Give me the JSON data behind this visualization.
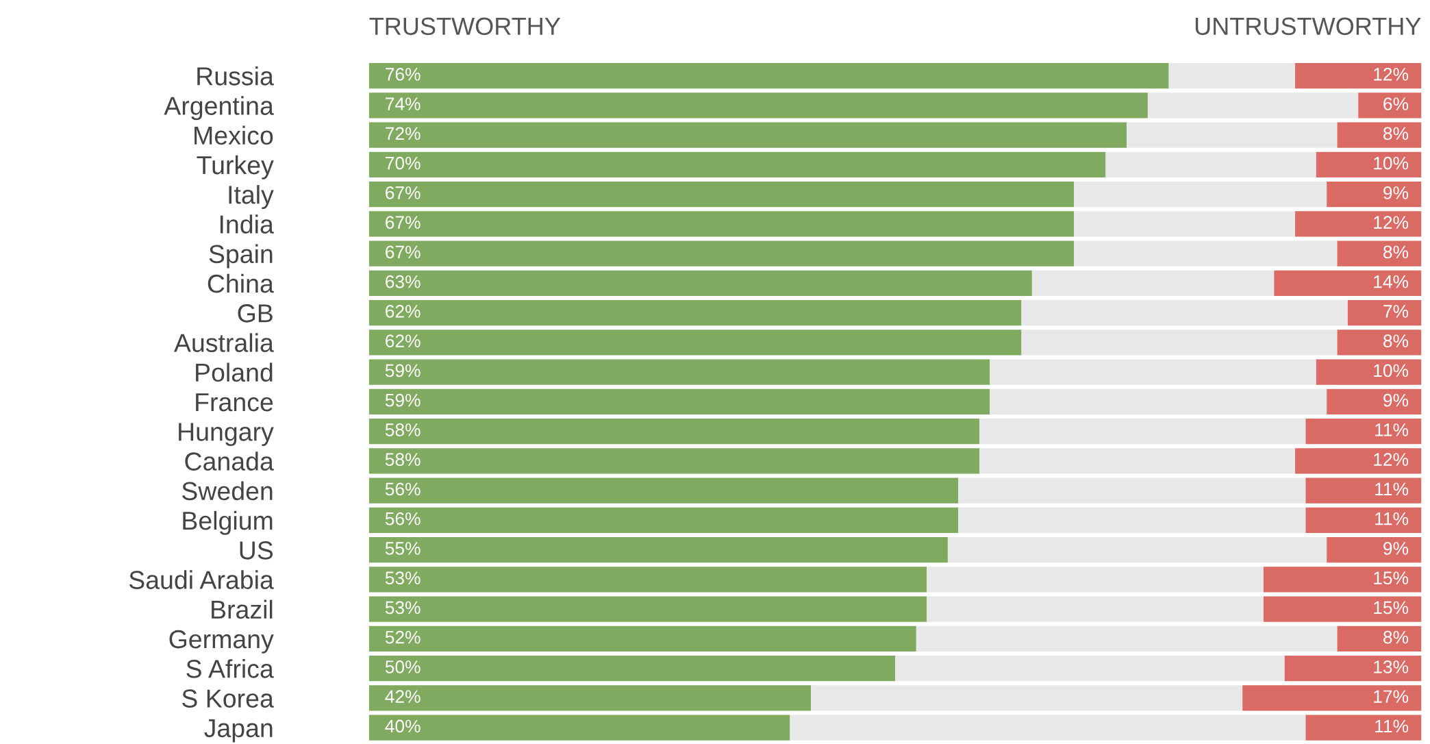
{
  "chart_data": {
    "type": "bar",
    "orientation": "horizontal",
    "stacked": true,
    "tick_labels": "y",
    "categories": [
      "Russia",
      "Argentina",
      "Mexico",
      "Turkey",
      "Italy",
      "India",
      "Spain",
      "China",
      "GB",
      "Australia",
      "Poland",
      "France",
      "Hungary",
      "Canada",
      "Sweden",
      "Belgium",
      "US",
      "Saudi Arabia",
      "Brazil",
      "Germany",
      "S Africa",
      "S Korea",
      "Japan"
    ],
    "xlim": [
      0,
      100
    ],
    "series": [
      {
        "name": "TRUSTWORTHY",
        "color": "#80aa60",
        "values": [
          76,
          74,
          72,
          70,
          67,
          67,
          67,
          63,
          62,
          62,
          59,
          59,
          58,
          58,
          56,
          56,
          55,
          53,
          53,
          52,
          50,
          42,
          40
        ],
        "value_labels": [
          "76%",
          "74%",
          "72%",
          "70%",
          "67%",
          "67%",
          "67%",
          "63%",
          "62%",
          "62%",
          "59%",
          "59%",
          "58%",
          "58%",
          "56%",
          "56%",
          "55%",
          "53%",
          "53%",
          "52%",
          "50%",
          "42%",
          "40%"
        ]
      },
      {
        "color": "#e8e8e8",
        "values": [
          12,
          20,
          20,
          20,
          24,
          21,
          25,
          23,
          31,
          30,
          31,
          32,
          31,
          30,
          33,
          33,
          36,
          32,
          32,
          40,
          37,
          41,
          49
        ]
      },
      {
        "name": "UNTRUSTWORTHY",
        "color": "#d96a64",
        "values": [
          12,
          6,
          8,
          10,
          9,
          12,
          8,
          14,
          7,
          8,
          10,
          9,
          11,
          12,
          11,
          11,
          9,
          15,
          15,
          8,
          13,
          17,
          11
        ],
        "value_labels": [
          "12%",
          "6%",
          "8%",
          "10%",
          "9%",
          "12%",
          "8%",
          "14%",
          "7%",
          "8%",
          "10%",
          "9%",
          "11%",
          "12%",
          "11%",
          "11%",
          "9%",
          "15%",
          "15%",
          "8%",
          "13%",
          "17%",
          "11%"
        ]
      }
    ]
  }
}
